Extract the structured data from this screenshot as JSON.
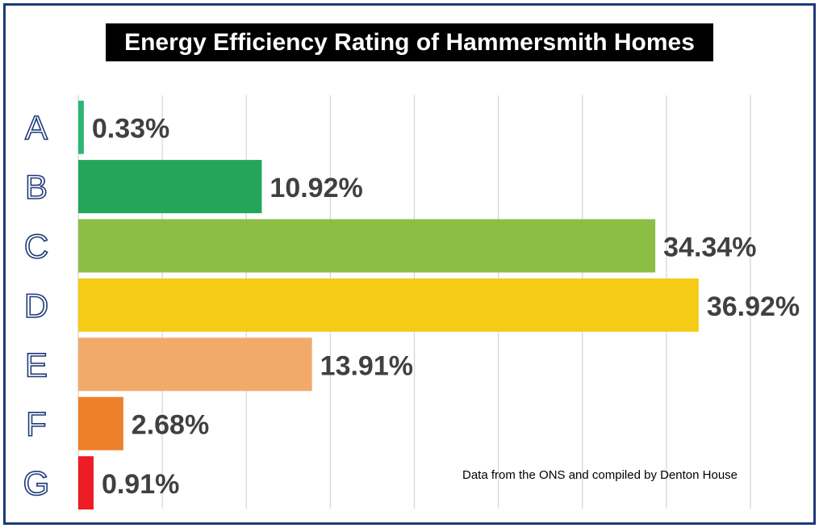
{
  "chart_data": {
    "type": "bar",
    "orientation": "horizontal",
    "title": "Energy Efficiency Rating of Hammersmith Homes",
    "categories": [
      "A",
      "B",
      "C",
      "D",
      "E",
      "F",
      "G"
    ],
    "values": [
      0.33,
      10.92,
      34.34,
      36.92,
      13.91,
      2.68,
      0.91
    ],
    "value_labels": [
      "0.33%",
      "10.92%",
      "34.34%",
      "36.92%",
      "13.91%",
      "2.68%",
      "0.91%"
    ],
    "colors": [
      "#2bb673",
      "#23a55a",
      "#8cbd45",
      "#f4cb15",
      "#f2aa6b",
      "#ee7f2b",
      "#ee1c25"
    ],
    "xlim": [
      0,
      40
    ],
    "grid": true,
    "xlabel": "",
    "ylabel": ""
  },
  "note": "Data from the ONS and compiled by Denton House"
}
